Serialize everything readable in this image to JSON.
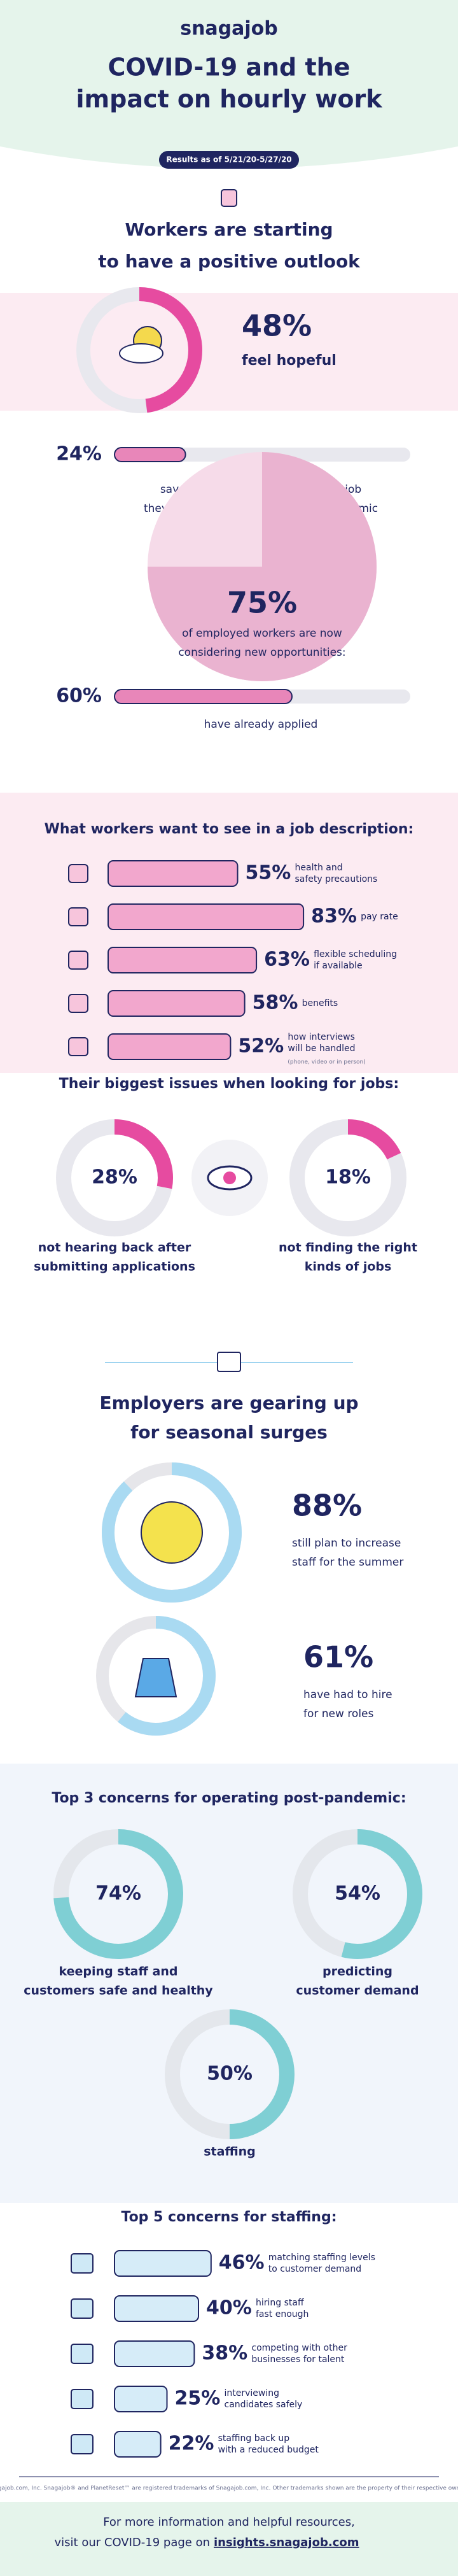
{
  "header": {
    "brand": "snagajob",
    "title": [
      "COVID-19 and the",
      "impact on hourly work"
    ],
    "date_pill": "Results as of 5/21/20-5/27/20"
  },
  "outlook": {
    "heading": [
      "Workers are starting",
      "to have a positive outlook"
    ],
    "hopeful": {
      "value": 48,
      "label": "48%",
      "caption": "feel hopeful"
    },
    "rethink": {
      "value": 24,
      "label": "24%",
      "caption": [
        "say that being able to rethink the job",
        "they want is a silver lining to the pandemic"
      ]
    },
    "opportunities": {
      "value": 75,
      "label": "75%",
      "caption": [
        "of employed workers are now",
        "considering new opportunities:"
      ]
    },
    "applied": {
      "value": 60,
      "label": "60%",
      "caption": "have already applied"
    }
  },
  "job_description": {
    "heading": "What workers want to see in a job description:",
    "items": [
      {
        "value": 55,
        "label": "55%",
        "text": [
          "health and",
          "safety precautions"
        ]
      },
      {
        "value": 83,
        "label": "83%",
        "text": [
          "pay rate"
        ]
      },
      {
        "value": 63,
        "label": "63%",
        "text": [
          "flexible scheduling",
          "if available"
        ]
      },
      {
        "value": 58,
        "label": "58%",
        "text": [
          "benefits"
        ]
      },
      {
        "value": 52,
        "label": "52%",
        "text": [
          "how interviews",
          "will be handled"
        ],
        "note": "(phone, video or in person)"
      }
    ]
  },
  "issues": {
    "heading": "Their biggest issues when looking for jobs:",
    "items": [
      {
        "value": 28,
        "label": "28%",
        "caption": [
          "not hearing back after",
          "submitting applications"
        ]
      },
      {
        "value": 18,
        "label": "18%",
        "caption": [
          "not finding the right",
          "kinds of jobs"
        ]
      }
    ]
  },
  "employers": {
    "heading": [
      "Employers are gearing up",
      "for seasonal surges"
    ],
    "items": [
      {
        "value": 88,
        "label": "88%",
        "caption": [
          "still plan to increase",
          "staff for the summer"
        ]
      },
      {
        "value": 61,
        "label": "61%",
        "caption": [
          "have had to hire",
          "for new roles"
        ]
      }
    ]
  },
  "concerns": {
    "heading": "Top 3 concerns for operating post-pandemic:",
    "items": [
      {
        "value": 74,
        "label": "74%",
        "caption": [
          "keeping staff and",
          "customers safe and healthy"
        ]
      },
      {
        "value": 54,
        "label": "54%",
        "caption": [
          "predicting",
          "customer demand"
        ]
      },
      {
        "value": 50,
        "label": "50%",
        "caption": [
          "staffing"
        ]
      }
    ]
  },
  "staffing": {
    "heading": "Top 5 concerns for staffing:",
    "items": [
      {
        "value": 46,
        "label": "46%",
        "text": [
          "matching staffing levels",
          "to customer demand"
        ]
      },
      {
        "value": 40,
        "label": "40%",
        "text": [
          "hiring staff",
          "fast enough"
        ]
      },
      {
        "value": 38,
        "label": "38%",
        "text": [
          "competing with other",
          "businesses for talent"
        ]
      },
      {
        "value": 25,
        "label": "25%",
        "text": [
          "interviewing",
          "candidates safely"
        ]
      },
      {
        "value": 22,
        "label": "22%",
        "text": [
          "staffing back up",
          "with a reduced budget"
        ]
      }
    ]
  },
  "footer": {
    "fine_print": "Snagajob.com, Inc. Snagajob® and PlanetReset™ are registered trademarks of Snagajob.com, Inc. Other trademarks shown are the property of their respective owners.",
    "lines": [
      "For more information and helpful resources,",
      "visit our COVID-19 page on"
    ],
    "link": "insights.snagajob.com"
  }
}
